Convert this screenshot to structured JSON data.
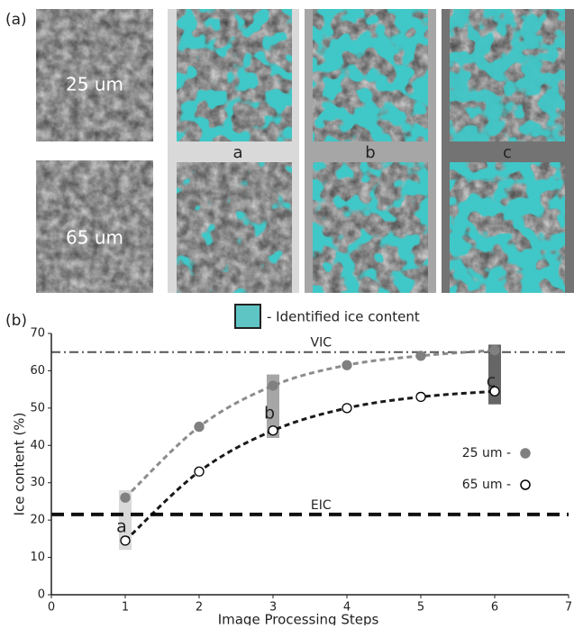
{
  "panel_a": {
    "label": "(a)",
    "rows": [
      "25 um",
      "65 um"
    ],
    "columns": [
      "a",
      "b",
      "c"
    ],
    "legend": "- Identified ice content"
  },
  "chart_data": {
    "type": "line",
    "panel_label": "(b)",
    "xlabel": "Image Processing Steps",
    "ylabel": "Ice content (%)",
    "x": [
      1,
      2,
      3,
      4,
      5,
      6
    ],
    "series": [
      {
        "name": "25 um -",
        "color": "#808080",
        "marker": "filled",
        "values": [
          26,
          45,
          56,
          61.5,
          64,
          65.5
        ]
      },
      {
        "name": "65 um -",
        "color": "#000000",
        "marker": "open",
        "values": [
          14.5,
          33,
          44,
          50,
          53,
          54.5
        ]
      }
    ],
    "reference_lines": [
      {
        "label": "VIC",
        "value": 65,
        "style": "dashdot",
        "color": "#555555"
      },
      {
        "label": "EIC",
        "value": 21.5,
        "style": "dash",
        "color": "#111111"
      }
    ],
    "annotations": [
      {
        "label": "a",
        "x": 1,
        "y": [
          12,
          28
        ],
        "color": "#d9d9d9"
      },
      {
        "label": "b",
        "x": 3,
        "y": [
          42,
          59
        ],
        "color": "#a6a6a6"
      },
      {
        "label": "c",
        "x": 6,
        "y": [
          51,
          67
        ],
        "color": "#666666"
      }
    ],
    "xlim": [
      0,
      7
    ],
    "ylim": [
      0,
      70
    ],
    "xticks": [
      0,
      1,
      2,
      3,
      4,
      5,
      6,
      7
    ],
    "yticks": [
      0,
      10,
      20,
      30,
      40,
      50,
      60,
      70
    ],
    "grid": false,
    "legend": "right"
  }
}
